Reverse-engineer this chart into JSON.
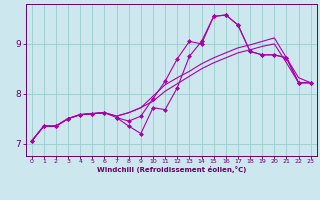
{
  "xlabel": "Windchill (Refroidissement éolien,°C)",
  "bg_color": "#cce8ee",
  "grid_color": "#99cccc",
  "line_color": "#aa00aa",
  "xlim": [
    -0.5,
    23.5
  ],
  "ylim": [
    6.75,
    9.8
  ],
  "xticks": [
    0,
    1,
    2,
    3,
    4,
    5,
    6,
    7,
    8,
    9,
    10,
    11,
    12,
    13,
    14,
    15,
    16,
    17,
    18,
    19,
    20,
    21,
    22,
    23
  ],
  "yticks": [
    7,
    8,
    9
  ],
  "line1_x": [
    0,
    1,
    2,
    3,
    4,
    5,
    6,
    7,
    8,
    9,
    10,
    11,
    12,
    13,
    14,
    15,
    16,
    17,
    18,
    19,
    20,
    21,
    22,
    23
  ],
  "line1_y": [
    7.05,
    7.35,
    7.35,
    7.5,
    7.58,
    7.6,
    7.62,
    7.52,
    7.45,
    7.55,
    7.9,
    8.25,
    8.7,
    9.05,
    9.0,
    9.55,
    9.58,
    9.38,
    8.85,
    8.78,
    8.78,
    8.72,
    8.22,
    8.22
  ],
  "line2_x": [
    0,
    1,
    2,
    3,
    4,
    5,
    6,
    7,
    8,
    9,
    10,
    11,
    12,
    13,
    14,
    15,
    16,
    17,
    18,
    19,
    20,
    21,
    22,
    23
  ],
  "line2_y": [
    7.05,
    7.35,
    7.35,
    7.5,
    7.58,
    7.6,
    7.62,
    7.55,
    7.62,
    7.72,
    7.95,
    8.18,
    8.32,
    8.45,
    8.6,
    8.72,
    8.82,
    8.92,
    8.98,
    9.05,
    9.12,
    8.72,
    8.32,
    8.22
  ],
  "line3_x": [
    0,
    1,
    2,
    3,
    4,
    5,
    6,
    7,
    8,
    9,
    10,
    11,
    12,
    13,
    14,
    15,
    16,
    17,
    18,
    19,
    20,
    21,
    22,
    23
  ],
  "line3_y": [
    7.05,
    7.35,
    7.35,
    7.5,
    7.58,
    7.6,
    7.62,
    7.55,
    7.62,
    7.72,
    7.85,
    8.05,
    8.2,
    8.35,
    8.5,
    8.62,
    8.72,
    8.82,
    8.88,
    8.95,
    9.0,
    8.62,
    8.22,
    8.22
  ],
  "line4_x": [
    0,
    1,
    2,
    3,
    4,
    5,
    6,
    7,
    8,
    9,
    10,
    11,
    12,
    13,
    14,
    15,
    16,
    17,
    18,
    19,
    20,
    21,
    22,
    23
  ],
  "line4_y": [
    7.05,
    7.35,
    7.35,
    7.5,
    7.58,
    7.6,
    7.62,
    7.52,
    7.35,
    7.2,
    7.72,
    7.68,
    8.12,
    8.75,
    9.05,
    9.55,
    9.58,
    9.38,
    8.85,
    8.78,
    8.78,
    8.72,
    8.22,
    8.22
  ],
  "axis_color": "#660066",
  "tick_color": "#660066",
  "font_color": "#660066"
}
